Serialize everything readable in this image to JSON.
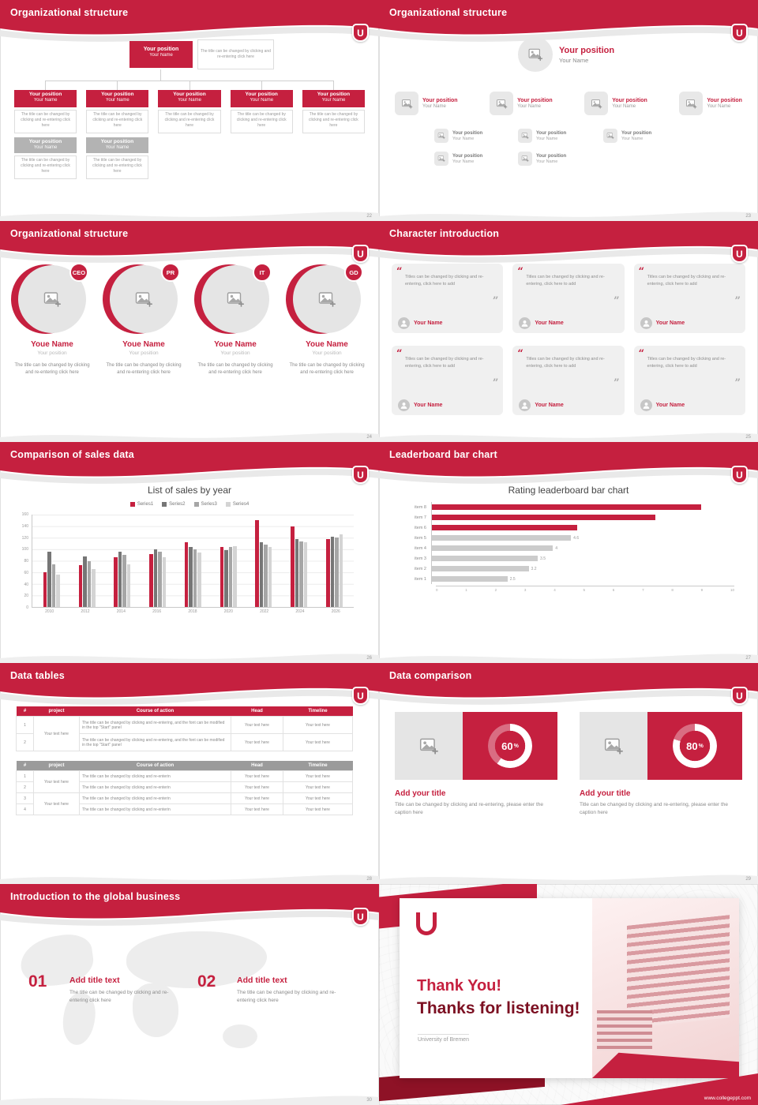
{
  "theme": {
    "primary": "#c5203f",
    "primary-dark": "#8e1226",
    "maroon": "#7c1022",
    "gray-node": "#b3b3b3",
    "card-gray": "#f0f0f0",
    "text-gray": "#8a8a8a"
  },
  "common": {
    "logo_letter": "U",
    "your_position": "Your position",
    "your_name": "Your Name",
    "note": "The title can be changed by clicking and re-entering click here",
    "quote_open": "“",
    "quote_close": "”",
    "pct_suffix": "%"
  },
  "slide22": {
    "title": "Organizational structure",
    "page": "22"
  },
  "slide23": {
    "title": "Organizational structure",
    "page": "23"
  },
  "slide24": {
    "title": "Organizational structure",
    "page": "24",
    "roles": [
      "CEO",
      "PR",
      "IT",
      "GD"
    ],
    "name": "Youe Name",
    "position": "Your position",
    "body": "The title can be changed by clicking and re-entering click here"
  },
  "slide25": {
    "title": "Character introduction",
    "page": "25",
    "quote": "Titles can be changed by clicking and re-entering, click here to add",
    "name": "Your Name"
  },
  "slide26": {
    "title": "Comparison of sales data",
    "page": "26",
    "chart_title": "List of sales by year"
  },
  "slide27": {
    "title": "Leaderboard bar chart",
    "page": "27",
    "chart_title": "Rating leaderboard bar chart"
  },
  "slide28": {
    "title": "Data tables",
    "page": "28",
    "headers": [
      "#",
      "project",
      "Course of action",
      "Head",
      "Timeline"
    ],
    "rows1": [
      "1",
      "2"
    ],
    "rows2": [
      "1",
      "2",
      "3",
      "4"
    ],
    "project_cell": "Your text here",
    "course_long": "The title can be changed by clicking and re-entering, and the font can be modified in the top \"Start\" panel",
    "course_short": "The title can be changed by clicking and re-enterin",
    "cell": "Your text here"
  },
  "slide29": {
    "title": "Data comparison",
    "page": "29",
    "heading": "Add your title",
    "caption": "Title can be changed by clicking and re-entering, please enter the caption here",
    "cards": [
      {
        "pct_label": "60"
      },
      {
        "pct_label": "80"
      }
    ]
  },
  "slide30": {
    "title": "Introduction to the global business",
    "page": "30",
    "items": [
      {
        "num": "01",
        "heading": "Add title text",
        "body": "The title can be changed by clicking and re-entering click here"
      },
      {
        "num": "02",
        "heading": "Add title text",
        "body": "The title can be changed by clicking and re-entering click here"
      }
    ]
  },
  "slide31": {
    "thank_you": "Thank You!",
    "listening": "Thanks for listening!",
    "university": "University of Bremen",
    "url": "www.collegeppt.com"
  },
  "chart_data": [
    {
      "type": "bar",
      "title": "List of sales by year",
      "categories": [
        "2010",
        "2012",
        "2014",
        "2016",
        "2018",
        "2020",
        "2022",
        "2024",
        "2026"
      ],
      "series": [
        {
          "name": "Series1",
          "color": "#c5203f",
          "values": [
            60,
            72,
            86,
            92,
            112,
            104,
            150,
            140,
            118
          ]
        },
        {
          "name": "Series2",
          "color": "#767676",
          "values": [
            96,
            88,
            96,
            100,
            104,
            98,
            112,
            118,
            122
          ]
        },
        {
          "name": "Series3",
          "color": "#a6a6a6",
          "values": [
            74,
            80,
            90,
            96,
            100,
            104,
            108,
            114,
            120
          ]
        },
        {
          "name": "Series4",
          "color": "#d4d4d4",
          "values": [
            56,
            66,
            74,
            86,
            94,
            106,
            104,
            112,
            126
          ]
        }
      ],
      "ylim": [
        0,
        160
      ],
      "ytick_step": 20,
      "legend_position": "top",
      "grid": true
    },
    {
      "type": "bar",
      "orientation": "horizontal",
      "title": "Rating leaderboard bar chart",
      "categories": [
        "item 8",
        "item 7",
        "item 6",
        "item 5",
        "item 4",
        "item 3",
        "item 2",
        "item 1"
      ],
      "values": [
        8.9,
        7.4,
        4.8,
        4.6,
        4,
        3.5,
        3.2,
        2.5
      ],
      "colors": [
        "#c5203f",
        "#c5203f",
        "#c5203f",
        "#cccccc",
        "#cccccc",
        "#cccccc",
        "#cccccc",
        "#cccccc"
      ],
      "value_labels": [
        "",
        "",
        "",
        "4.6",
        "4",
        "3.5",
        "3.2",
        "2.5"
      ],
      "xlim": [
        0,
        10
      ],
      "xtick_step": 1
    },
    {
      "type": "pie",
      "variant": "donut",
      "unit": "%",
      "labels": [
        "Add your title",
        "Add your title"
      ],
      "values": [
        60,
        80
      ]
    }
  ]
}
